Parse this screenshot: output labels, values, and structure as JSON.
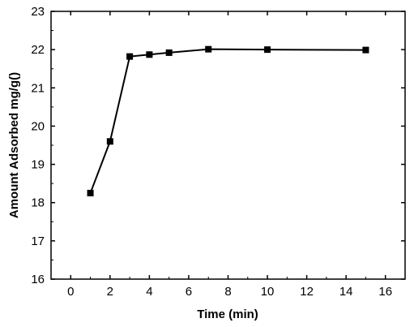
{
  "chart_data": {
    "type": "line",
    "title": "",
    "xlabel": "Time (min)",
    "ylabel": "Amount Adsorbed mg/g()",
    "xlim": [
      -1,
      17
    ],
    "ylim": [
      16,
      23
    ],
    "xticks": [
      "0",
      "2",
      "4",
      "6",
      "8",
      "10",
      "12",
      "14",
      "16"
    ],
    "yticks": [
      "16",
      "17",
      "18",
      "19",
      "20",
      "21",
      "22",
      "23"
    ],
    "grid": false,
    "legend": "none",
    "series": [
      {
        "marker": "square",
        "color": "#000000",
        "x": [
          1,
          2,
          3,
          4,
          5,
          7,
          10,
          15
        ],
        "y": [
          18.25,
          19.6,
          21.82,
          21.87,
          21.92,
          22.01,
          22.0,
          21.99
        ]
      }
    ]
  }
}
